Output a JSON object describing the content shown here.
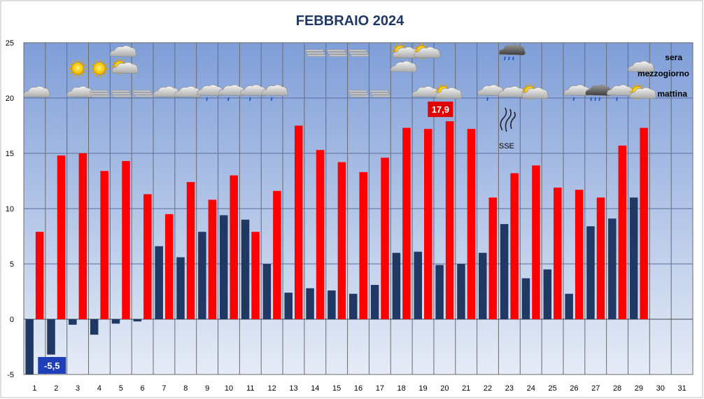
{
  "chart_data": {
    "type": "bar",
    "title": "FEBBRAIO  2024",
    "categories": [
      "1",
      "2",
      "3",
      "4",
      "5",
      "6",
      "7",
      "8",
      "9",
      "10",
      "11",
      "12",
      "13",
      "14",
      "15",
      "16",
      "17",
      "18",
      "19",
      "20",
      "21",
      "22",
      "23",
      "24",
      "25",
      "26",
      "27",
      "28",
      "29",
      "30",
      "31"
    ],
    "series": [
      {
        "color": "#1f3864",
        "values": [
          -5.5,
          -3.2,
          -0.5,
          -1.4,
          -0.4,
          -0.2,
          6.6,
          5.6,
          7.9,
          9.4,
          9.0,
          5.0,
          2.4,
          2.8,
          2.6,
          2.3,
          3.1,
          6.0,
          6.1,
          4.9,
          5.0,
          6.0,
          8.6,
          3.7,
          4.5,
          2.3,
          8.4,
          9.1,
          11.0,
          null,
          null
        ]
      },
      {
        "color": "#ff0000",
        "values": [
          7.9,
          14.8,
          15.0,
          13.4,
          14.3,
          11.3,
          9.5,
          12.4,
          10.8,
          13.0,
          7.9,
          11.6,
          17.5,
          15.3,
          14.2,
          13.3,
          14.6,
          17.3,
          17.2,
          17.9,
          17.2,
          11.0,
          13.2,
          13.9,
          11.9,
          11.7,
          11.0,
          15.7,
          17.3,
          null,
          null
        ]
      }
    ],
    "ylim": [
      -5,
      25
    ],
    "yticks": [
      -5,
      0,
      5,
      10,
      15,
      20,
      25
    ],
    "grid": true,
    "annotations": {
      "min_label": "-5,5",
      "min_value": -5.5,
      "max_label": "17,9",
      "max_value": 17.9,
      "wind_label": "SSE",
      "wind_day": 23
    },
    "legend": {
      "evening": "sera",
      "noon": "mezzogiorno",
      "morning": "mattina"
    },
    "weather_icons": {
      "morning": [
        "cloud-icon",
        "",
        "cloud-icon",
        "fog-icon",
        "fog-icon",
        "fog-icon",
        "cloud-icon",
        "cloud-icon",
        "rain-icon",
        "rain-icon",
        "rain-icon",
        "rain-icon",
        "",
        "",
        "",
        "fog-icon",
        "fog-icon",
        "",
        "cloud-icon",
        "partly-cloudy-icon",
        "",
        "rain-icon",
        "cloud-icon",
        "partly-cloudy-icon",
        "",
        "rain-icon",
        "heavy-rain-icon",
        "rain-icon",
        "partly-cloudy-icon",
        "",
        ""
      ],
      "noon": [
        "",
        "",
        "sun-icon",
        "sun-icon",
        "partly-cloudy-icon",
        "",
        "",
        "",
        "",
        "",
        "",
        "",
        "",
        "",
        "",
        "",
        "",
        "cloud-icon",
        "",
        "",
        "",
        "",
        "",
        "",
        "",
        "",
        "",
        "",
        "cloud-icon",
        "",
        ""
      ],
      "evening": [
        "",
        "",
        "",
        "",
        "cloud-icon",
        "",
        "",
        "",
        "",
        "",
        "",
        "",
        "",
        "fog-icon",
        "fog-icon",
        "fog-icon",
        "",
        "partly-cloudy-icon",
        "partly-cloudy-icon",
        "",
        "",
        "",
        "heavy-rain-icon",
        "",
        "",
        "",
        "",
        "",
        "",
        "",
        ""
      ]
    },
    "colors": {
      "plot_top": "#7f9ed8",
      "plot_bottom": "#e6ecf7",
      "title": "#1f3864",
      "min_callout": "#1f3fb8",
      "max_callout": "#e00000"
    }
  }
}
